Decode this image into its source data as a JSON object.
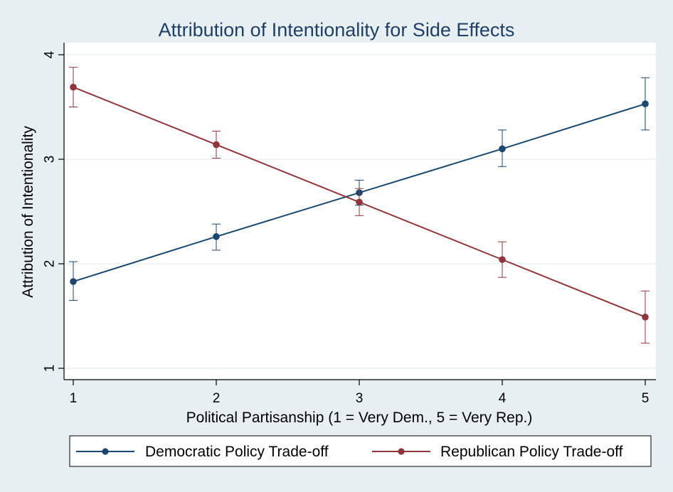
{
  "chart_data": {
    "type": "line",
    "title": "Attribution of Intentionality for Side Effects",
    "xlabel": "Political Partisanship (1 = Very Dem., 5 = Very Rep.)",
    "ylabel": "Attribution of Intentionality",
    "x": [
      1,
      2,
      3,
      4,
      5
    ],
    "x_ticks": [
      "1",
      "2",
      "3",
      "4",
      "5"
    ],
    "y_ticks": [
      "1",
      "2",
      "3",
      "4"
    ],
    "xlim": [
      1,
      5
    ],
    "ylim": [
      1,
      4
    ],
    "grid": true,
    "legend_position": "bottom",
    "series": [
      {
        "name": "Democratic Policy Trade-off",
        "color": "#1a476f",
        "values": [
          1.83,
          2.26,
          2.68,
          3.1,
          3.53
        ],
        "ci_low": [
          1.65,
          2.13,
          2.56,
          2.93,
          3.28
        ],
        "ci_high": [
          2.02,
          2.38,
          2.8,
          3.28,
          3.78
        ]
      },
      {
        "name": "Republican Policy Trade-off",
        "color": "#90353b",
        "values": [
          3.69,
          3.14,
          2.59,
          2.04,
          1.49
        ],
        "ci_low": [
          3.5,
          3.01,
          2.46,
          1.87,
          1.24
        ],
        "ci_high": [
          3.88,
          3.27,
          2.72,
          2.21,
          1.74
        ]
      }
    ]
  }
}
